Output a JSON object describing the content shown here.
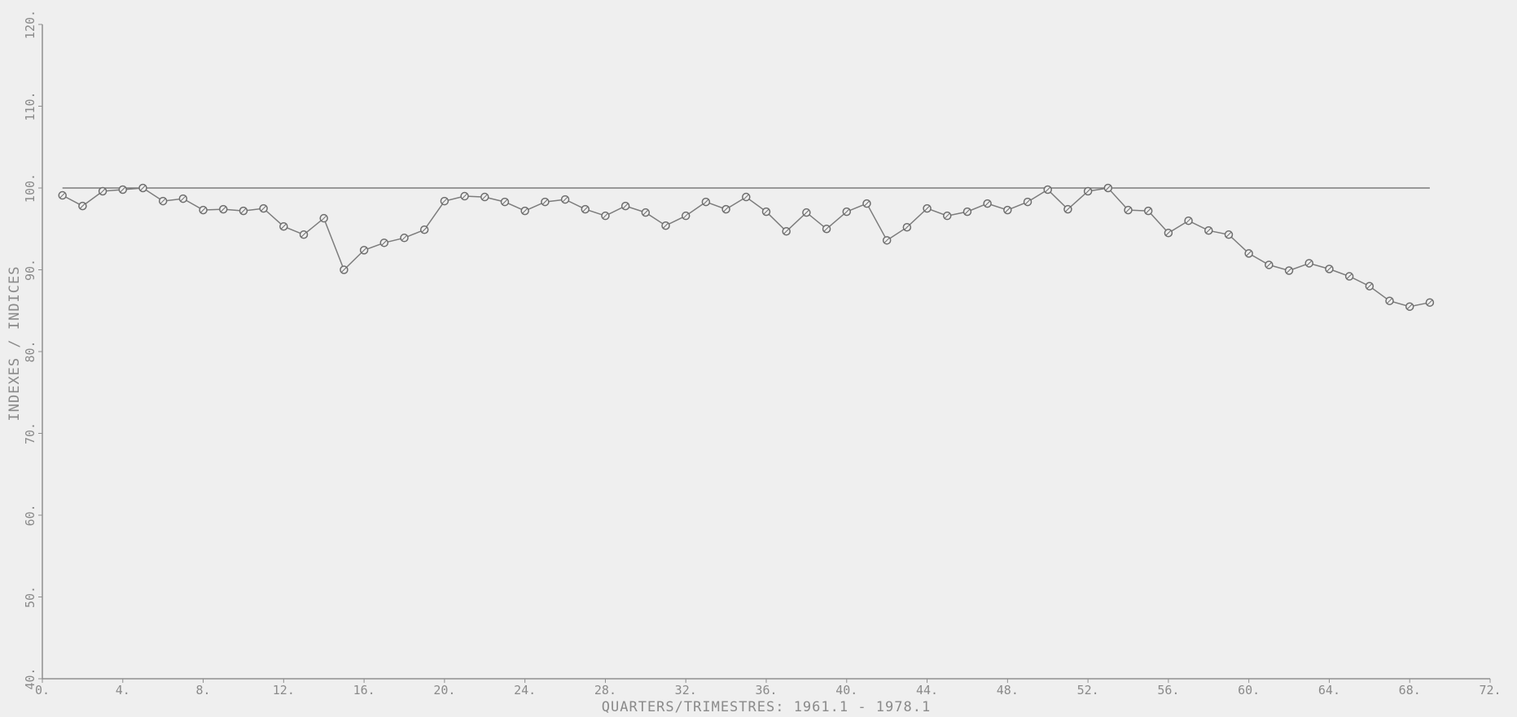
{
  "colors": {
    "background": "#efefef",
    "axis": "#8f8f8f",
    "line": "#7c7c7c",
    "marker": "#6e6e6e"
  },
  "chart_data": {
    "type": "line",
    "title": "",
    "xlabel": "QUARTERS/TRIMESTRES: 1961.1 - 1978.1",
    "ylabel": "INDEXES / INDICES",
    "xlim": [
      0,
      72
    ],
    "ylim": [
      40,
      120
    ],
    "xticks": [
      0,
      4,
      8,
      12,
      16,
      20,
      24,
      28,
      32,
      36,
      40,
      44,
      48,
      52,
      56,
      60,
      64,
      68,
      72
    ],
    "xtick_labels": [
      "0.",
      "4.",
      "8.",
      "12.",
      "16.",
      "20.",
      "24.",
      "28.",
      "32.",
      "36.",
      "40.",
      "44.",
      "48.",
      "52.",
      "56.",
      "60.",
      "64.",
      "68.",
      "72."
    ],
    "yticks": [
      40,
      50,
      60,
      70,
      80,
      90,
      100,
      110,
      120
    ],
    "ytick_labels": [
      "40.",
      "50.",
      "60.",
      "70.",
      "80.",
      "90.",
      "100.",
      "110.",
      "120."
    ],
    "grid": false,
    "reference_line": {
      "y": 100,
      "x_start": 1,
      "x_end": 69
    },
    "series": [
      {
        "marker": "circle",
        "x": [
          1,
          2,
          3,
          4,
          5,
          6,
          7,
          8,
          9,
          10,
          11,
          12,
          13,
          14,
          15,
          16,
          17,
          18,
          19,
          20,
          21,
          22,
          23,
          24,
          25,
          26,
          27,
          28,
          29,
          30,
          31,
          32,
          33,
          34,
          35,
          36,
          37,
          38,
          39,
          40,
          41,
          42,
          43,
          44,
          45,
          46,
          47,
          48,
          49,
          50,
          51,
          52,
          53,
          54,
          55,
          56,
          57,
          58,
          59,
          60,
          61,
          62,
          63,
          64,
          65,
          66,
          67,
          68,
          69
        ],
        "values": [
          99.1,
          97.8,
          99.6,
          99.8,
          100.0,
          98.4,
          98.7,
          97.3,
          97.4,
          97.2,
          97.5,
          95.3,
          94.3,
          96.3,
          90.0,
          92.4,
          93.3,
          93.9,
          94.9,
          98.4,
          99.0,
          98.9,
          98.3,
          97.2,
          98.3,
          98.6,
          97.4,
          96.6,
          97.8,
          97.0,
          95.4,
          96.6,
          98.3,
          97.4,
          98.9,
          97.1,
          94.7,
          97.0,
          95.0,
          97.1,
          98.1,
          93.6,
          95.2,
          97.5,
          96.6,
          97.1,
          98.1,
          97.3,
          98.3,
          99.8,
          97.4,
          99.6,
          100.0,
          97.3,
          97.2,
          94.5,
          96.0,
          94.8,
          94.3,
          92.0,
          90.6,
          89.9,
          90.8,
          90.1,
          89.2,
          88.0,
          86.2,
          85.5,
          86.0
        ]
      }
    ]
  }
}
